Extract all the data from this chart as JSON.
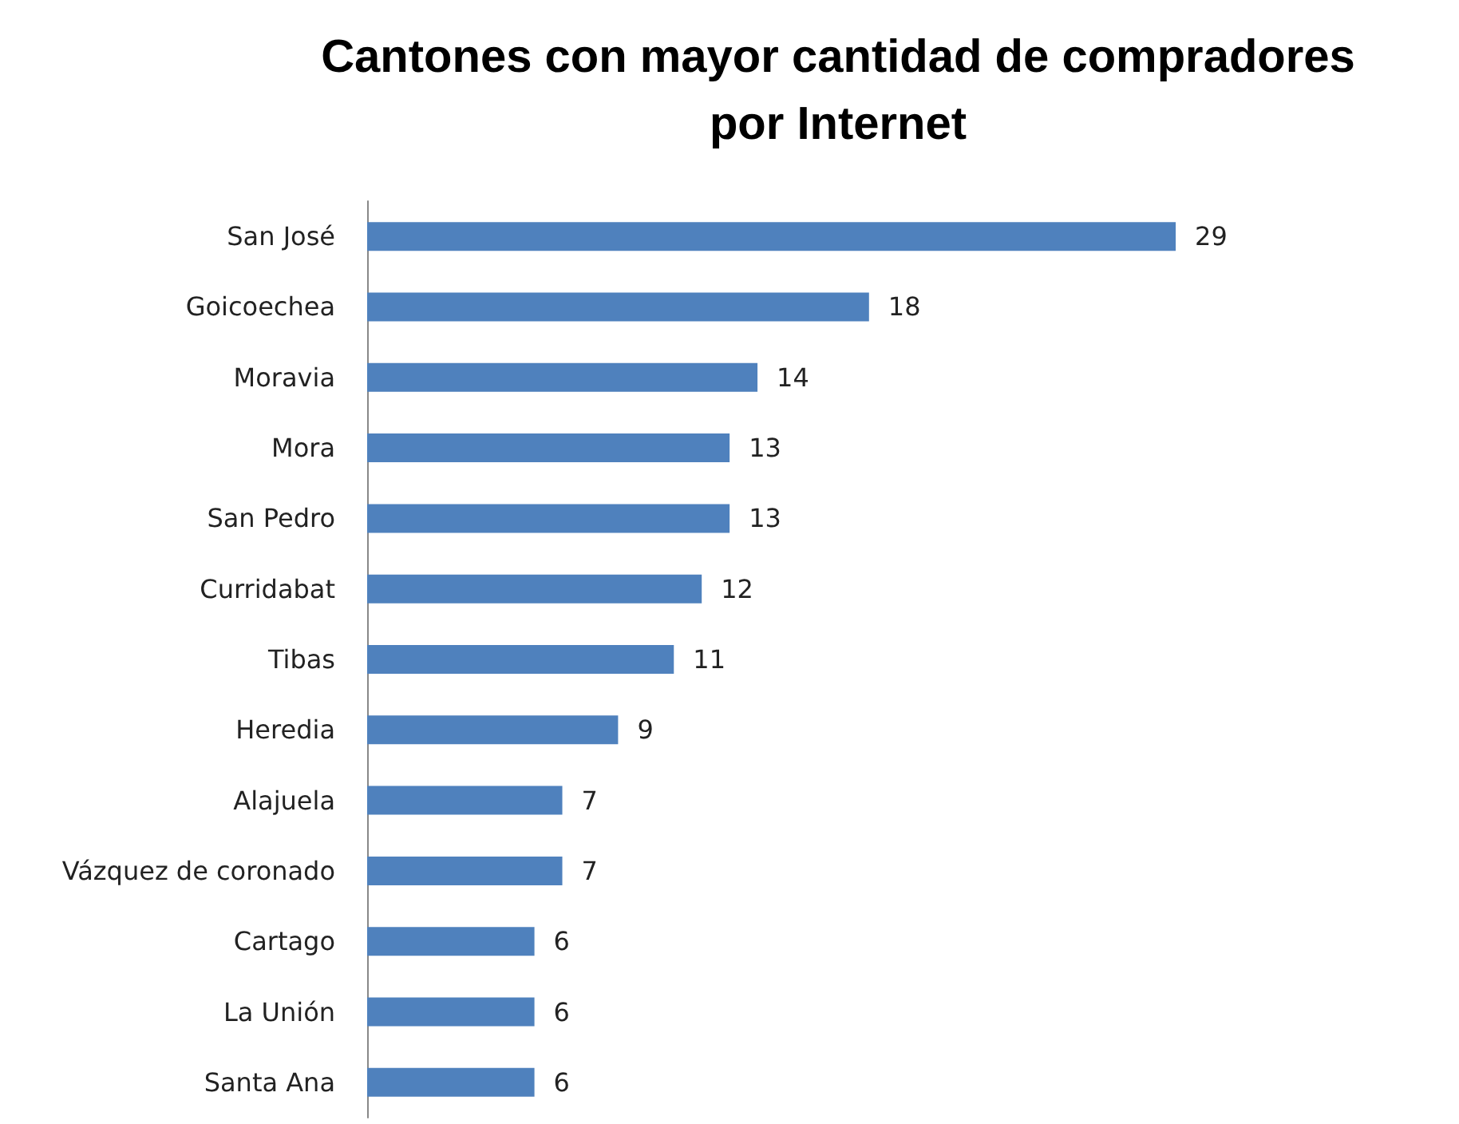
{
  "chart_data": {
    "type": "bar",
    "orientation": "horizontal",
    "title": "Cantones con mayor cantidad de compradores\npor Internet",
    "categories": [
      "San José",
      "Goicoechea",
      "Moravia",
      "Mora",
      "San Pedro",
      "Curridabat",
      "Tibas",
      "Heredia",
      "Alajuela",
      "Vázquez de coronado",
      "Cartago",
      "La Unión",
      "Santa Ana"
    ],
    "values": [
      29,
      18,
      14,
      13,
      13,
      12,
      11,
      9,
      7,
      7,
      6,
      6,
      6
    ],
    "color": "#4f81bd",
    "data_labels": true
  }
}
